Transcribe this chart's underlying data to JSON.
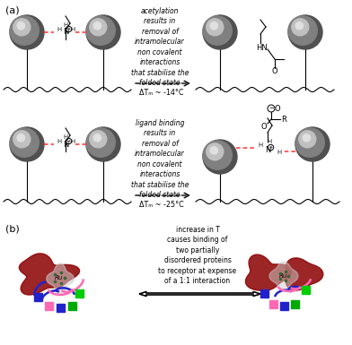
{
  "bg_color": "#ffffff",
  "panel_a_label": "(a)",
  "panel_b_label": "(b)",
  "top_text": "acetylation\nresults in\nremoval of\nintramolecular\nnon covalent\ninteractions\nthat stabilise the\nfolded state",
  "top_arrow_text": "ΔTₘ ~ -14°C",
  "mid_text": "ligand binding\nresults in\nremoval of\nintramolecular\nnon covalent\ninteractions\nthat stabilise the\nfolded state",
  "mid_arrow_text": "ΔTₘ ~ -25°C",
  "bot_text": "increase in T\ncauses binding of\ntwo partially\ndisordered proteins\nto receptor at expense\nof a 1:1 interaction"
}
